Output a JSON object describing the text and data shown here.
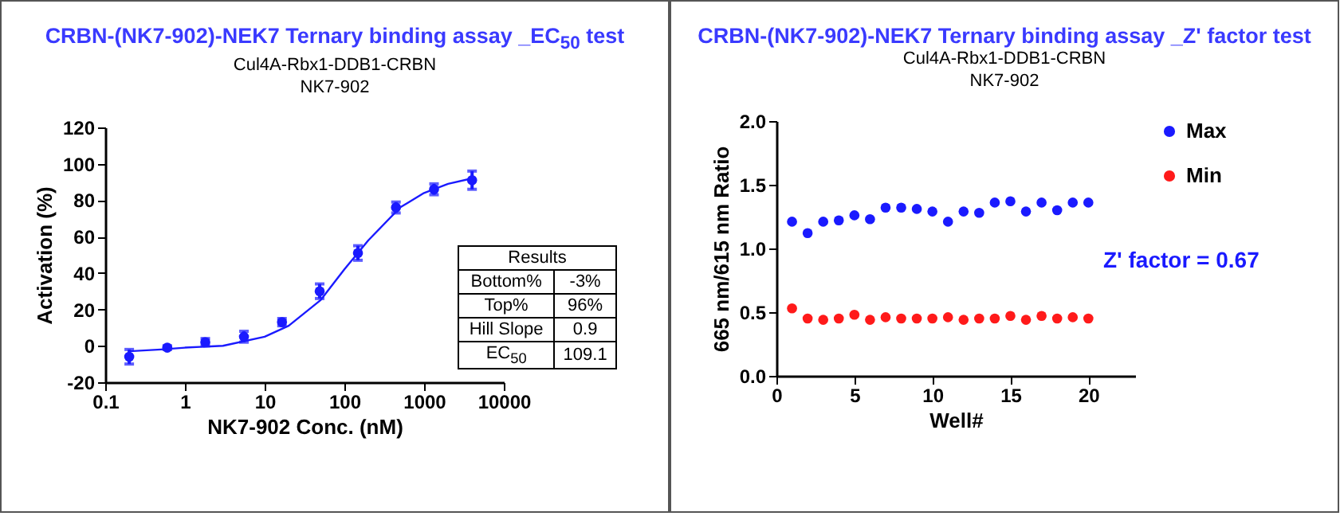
{
  "chart_data": [
    {
      "type": "scatter",
      "title": "CRBN-(NK7-902)-NEK7 Ternary binding assay _EC$_{50}$ test",
      "subtitle": "Cul4A-Rbx1-DDB1-CRBN\nNK7-902",
      "xlabel": "NK7-902 Conc. (nM)",
      "ylabel": "Activation (%)",
      "log": "x",
      "grid": false,
      "legend": false,
      "xlim": [
        0.1,
        10000
      ],
      "xticks": [
        0.1,
        1,
        10,
        100,
        1000,
        10000
      ],
      "ylim": [
        -20,
        120
      ],
      "yticks": [
        -20,
        0,
        20,
        40,
        60,
        80,
        100,
        120
      ],
      "annotations": [
        "Results",
        "Bottom%",
        "-3%",
        "Top%",
        "96%",
        "Hill Slope",
        "0.9",
        "EC$_{50}$",
        "109.1"
      ],
      "series": [
        {
          "marker": "circle",
          "color": "#1a1aff",
          "x": [
            0.2,
            0.6,
            1.8,
            5.5,
            16.5,
            49,
            148,
            444,
            1333,
            4000
          ],
          "values": [
            -6,
            -1,
            2,
            5,
            13,
            30,
            51,
            76,
            86,
            91
          ],
          "errors": [
            4,
            1,
            2,
            3,
            2,
            4,
            4,
            3,
            3,
            5
          ]
        },
        {
          "type": "line",
          "marker": "none",
          "color": "#1a1aff",
          "line_style": "solid",
          "x": [
            0.2,
            0.5,
            1,
            3,
            10,
            20,
            50,
            100,
            200,
            500,
            1000,
            2000,
            4000
          ],
          "values": [
            -3,
            -2,
            -1,
            0,
            5,
            11,
            25,
            42,
            58,
            76,
            84,
            89,
            92
          ]
        }
      ]
    },
    {
      "type": "scatter",
      "title": "CRBN-(NK7-902)-NEK7 Ternary binding assay _Z' factor test",
      "subtitle": "Cul4A-Rbx1-DDB1-CRBN\nNK7-902",
      "xlabel": "Well#",
      "ylabel": "665 nm/615 nm Ratio",
      "grid": false,
      "legend": "top right",
      "xlim": [
        0,
        23
      ],
      "xticks": [
        0,
        5,
        10,
        15,
        20
      ],
      "ylim": [
        0,
        2
      ],
      "yticks": [
        {
          "value": 0,
          "label": "0.0"
        },
        {
          "value": 0.5,
          "label": "0.5"
        },
        {
          "value": 1,
          "label": "1.0"
        },
        {
          "value": 1.5,
          "label": "1.5"
        },
        {
          "value": 2,
          "label": "2.0"
        }
      ],
      "annotations": [
        "Z' factor = 0.67"
      ],
      "x": [
        1,
        2,
        3,
        4,
        5,
        6,
        7,
        8,
        9,
        10,
        11,
        12,
        13,
        14,
        15,
        16,
        17,
        18,
        19,
        20
      ],
      "series": [
        {
          "name": "Max",
          "marker": "circle",
          "color": "#1a1aff",
          "values": [
            1.21,
            1.12,
            1.21,
            1.22,
            1.26,
            1.23,
            1.32,
            1.32,
            1.31,
            1.29,
            1.21,
            1.29,
            1.28,
            1.36,
            1.37,
            1.29,
            1.36,
            1.3,
            1.36,
            1.36
          ]
        },
        {
          "name": "Min",
          "marker": "circle",
          "color": "#ff1a1a",
          "values": [
            0.53,
            0.45,
            0.44,
            0.45,
            0.48,
            0.44,
            0.46,
            0.45,
            0.45,
            0.45,
            0.46,
            0.44,
            0.45,
            0.45,
            0.47,
            0.44,
            0.47,
            0.45,
            0.46,
            0.45
          ]
        }
      ]
    }
  ]
}
